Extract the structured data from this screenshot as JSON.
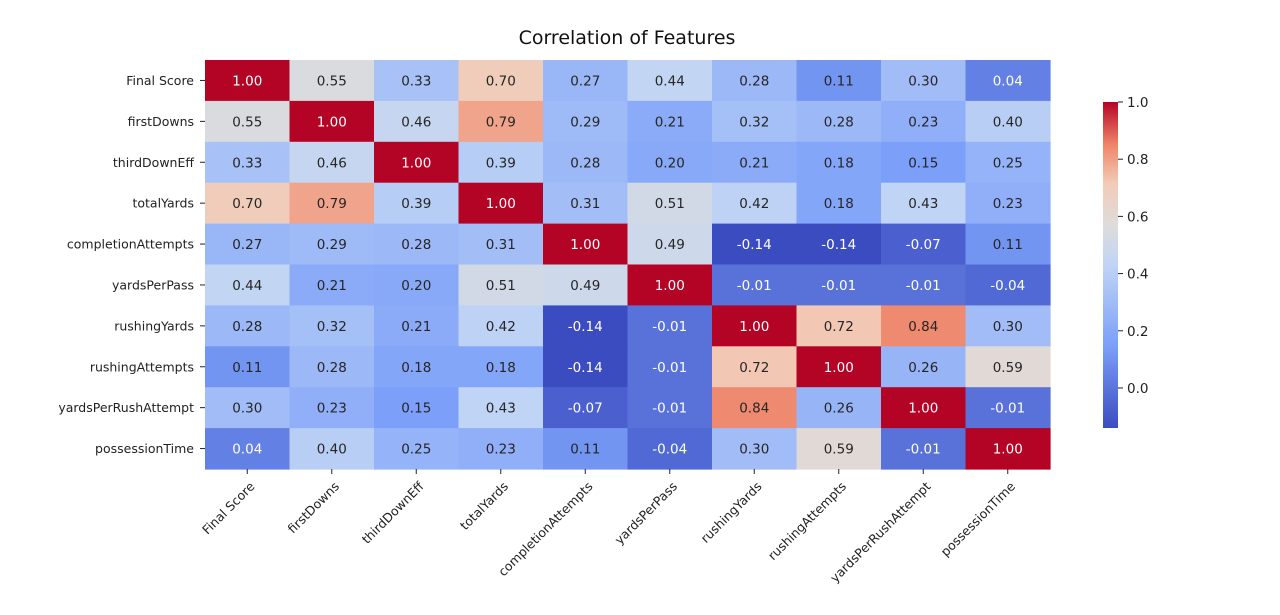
{
  "chart_data": {
    "type": "heatmap",
    "title": "Correlation of Features",
    "xlabel": "",
    "ylabel": "",
    "colormap": "coolwarm",
    "color_range": [
      -0.14,
      1.0
    ],
    "colorbar_ticks": [
      "0.0",
      "0.2",
      "0.4",
      "0.6",
      "0.8",
      "1.0"
    ],
    "labels": [
      "Final Score",
      "firstDowns",
      "thirdDownEff",
      "totalYards",
      "completionAttempts",
      "yardsPerPass",
      "rushingYards",
      "rushingAttempts",
      "yardsPerRushAttempt",
      "possessionTime"
    ],
    "values": [
      [
        1.0,
        0.55,
        0.33,
        0.7,
        0.27,
        0.44,
        0.28,
        0.11,
        0.3,
        0.04
      ],
      [
        0.55,
        1.0,
        0.46,
        0.79,
        0.29,
        0.21,
        0.32,
        0.28,
        0.23,
        0.4
      ],
      [
        0.33,
        0.46,
        1.0,
        0.39,
        0.28,
        0.2,
        0.21,
        0.18,
        0.15,
        0.25
      ],
      [
        0.7,
        0.79,
        0.39,
        1.0,
        0.31,
        0.51,
        0.42,
        0.18,
        0.43,
        0.23
      ],
      [
        0.27,
        0.29,
        0.28,
        0.31,
        1.0,
        0.49,
        -0.14,
        -0.14,
        -0.07,
        0.11
      ],
      [
        0.44,
        0.21,
        0.2,
        0.51,
        0.49,
        1.0,
        -0.01,
        -0.01,
        -0.01,
        -0.04
      ],
      [
        0.28,
        0.32,
        0.21,
        0.42,
        -0.14,
        -0.01,
        1.0,
        0.72,
        0.84,
        0.3
      ],
      [
        0.11,
        0.28,
        0.18,
        0.18,
        -0.14,
        -0.01,
        0.72,
        1.0,
        0.26,
        0.59
      ],
      [
        0.3,
        0.23,
        0.15,
        0.43,
        -0.07,
        -0.01,
        0.84,
        0.26,
        1.0,
        -0.01
      ],
      [
        0.04,
        0.4,
        0.25,
        0.23,
        0.11,
        -0.04,
        0.3,
        0.59,
        -0.01,
        1.0
      ]
    ]
  }
}
